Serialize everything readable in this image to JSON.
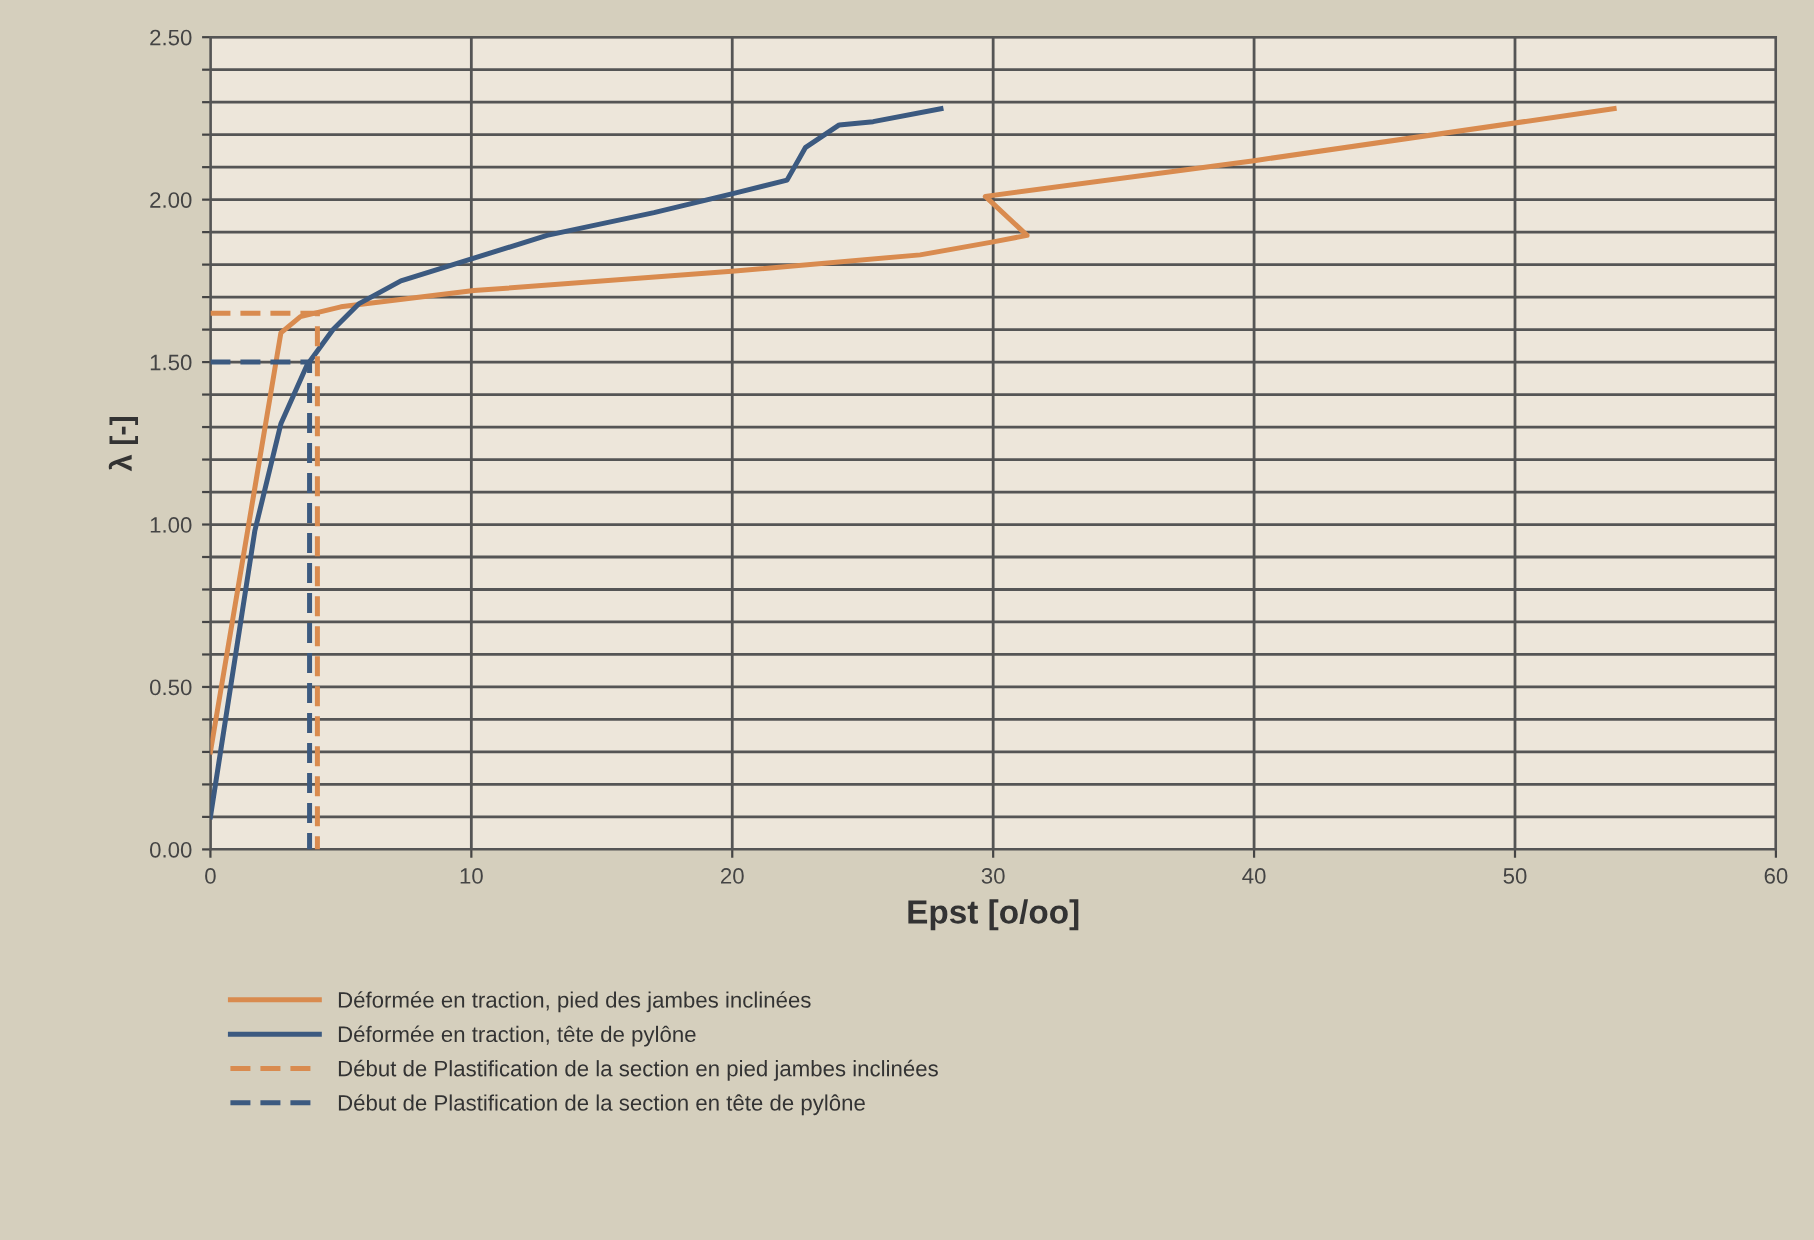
{
  "chart_data": {
    "type": "line",
    "xlabel": "Epst [o/oo]",
    "ylabel": "λ [-]",
    "xlim": [
      0,
      60
    ],
    "xticks": [
      0,
      10,
      20,
      30,
      40,
      50,
      60
    ],
    "ylim": [
      0,
      2.5
    ],
    "yticks": [
      {
        "value": 0,
        "label": "0.00"
      },
      {
        "value": 0.1,
        "label": null
      },
      {
        "value": 0.2,
        "label": null
      },
      {
        "value": 0.3,
        "label": null
      },
      {
        "value": 0.4,
        "label": null
      },
      {
        "value": 0.5,
        "label": "0.50"
      },
      {
        "value": 0.6,
        "label": null
      },
      {
        "value": 0.7,
        "label": null
      },
      {
        "value": 0.8,
        "label": null
      },
      {
        "value": 0.9,
        "label": null
      },
      {
        "value": 1.0,
        "label": "1.00"
      },
      {
        "value": 1.1,
        "label": null
      },
      {
        "value": 1.2,
        "label": null
      },
      {
        "value": 1.3,
        "label": null
      },
      {
        "value": 1.4,
        "label": null
      },
      {
        "value": 1.5,
        "label": "1.50"
      },
      {
        "value": 1.6,
        "label": null
      },
      {
        "value": 1.7,
        "label": null
      },
      {
        "value": 1.8,
        "label": null
      },
      {
        "value": 1.9,
        "label": null
      },
      {
        "value": 2.0,
        "label": "2.00"
      },
      {
        "value": 2.1,
        "label": null
      },
      {
        "value": 2.2,
        "label": null
      },
      {
        "value": 2.3,
        "label": null
      },
      {
        "value": 2.4,
        "label": null
      },
      {
        "value": 2.5,
        "label": "2.50"
      }
    ],
    "grid": true,
    "legend": "bottom",
    "marker": "none",
    "series": [
      {
        "name": "Déformée en traction, pied des jambes inclinées",
        "color": "#d98b4f",
        "line_style": "solid",
        "x": [
          0,
          2.45,
          2.7,
          3.45,
          5.0,
          10.1,
          20.1,
          27.2,
          30.0,
          31.3,
          29.7,
          40,
          53.8
        ],
        "values": [
          0.3,
          1.47,
          1.59,
          1.64,
          1.67,
          1.72,
          1.78,
          1.83,
          1.87,
          1.89,
          2.01,
          2.12,
          2.28
        ]
      },
      {
        "name": "Déformée en traction, tête de pylône",
        "color": "#3c5a80",
        "line_style": "solid",
        "x": [
          0,
          1.7,
          2.7,
          3.7,
          4.7,
          5.7,
          7.3,
          10.1,
          12.9,
          17.0,
          20.1,
          22.1,
          22.8,
          24.1,
          25.4,
          28.0
        ],
        "values": [
          0.1,
          0.98,
          1.31,
          1.49,
          1.6,
          1.68,
          1.75,
          1.82,
          1.89,
          1.96,
          2.02,
          2.06,
          2.16,
          2.23,
          2.24,
          2.28
        ]
      },
      {
        "name": "Début de Plastification de la section en pied jambes inclinées",
        "color": "#d98b4f",
        "line_style": "dashed",
        "x": [
          0,
          4.1,
          4.1
        ],
        "values": [
          1.65,
          1.65,
          0
        ]
      },
      {
        "name": "Début de Plastification de la section en tête de pylône",
        "color": "#3c5a80",
        "line_style": "dashed",
        "x": [
          0,
          3.8,
          3.8
        ],
        "values": [
          1.5,
          1.5,
          0
        ]
      }
    ]
  }
}
